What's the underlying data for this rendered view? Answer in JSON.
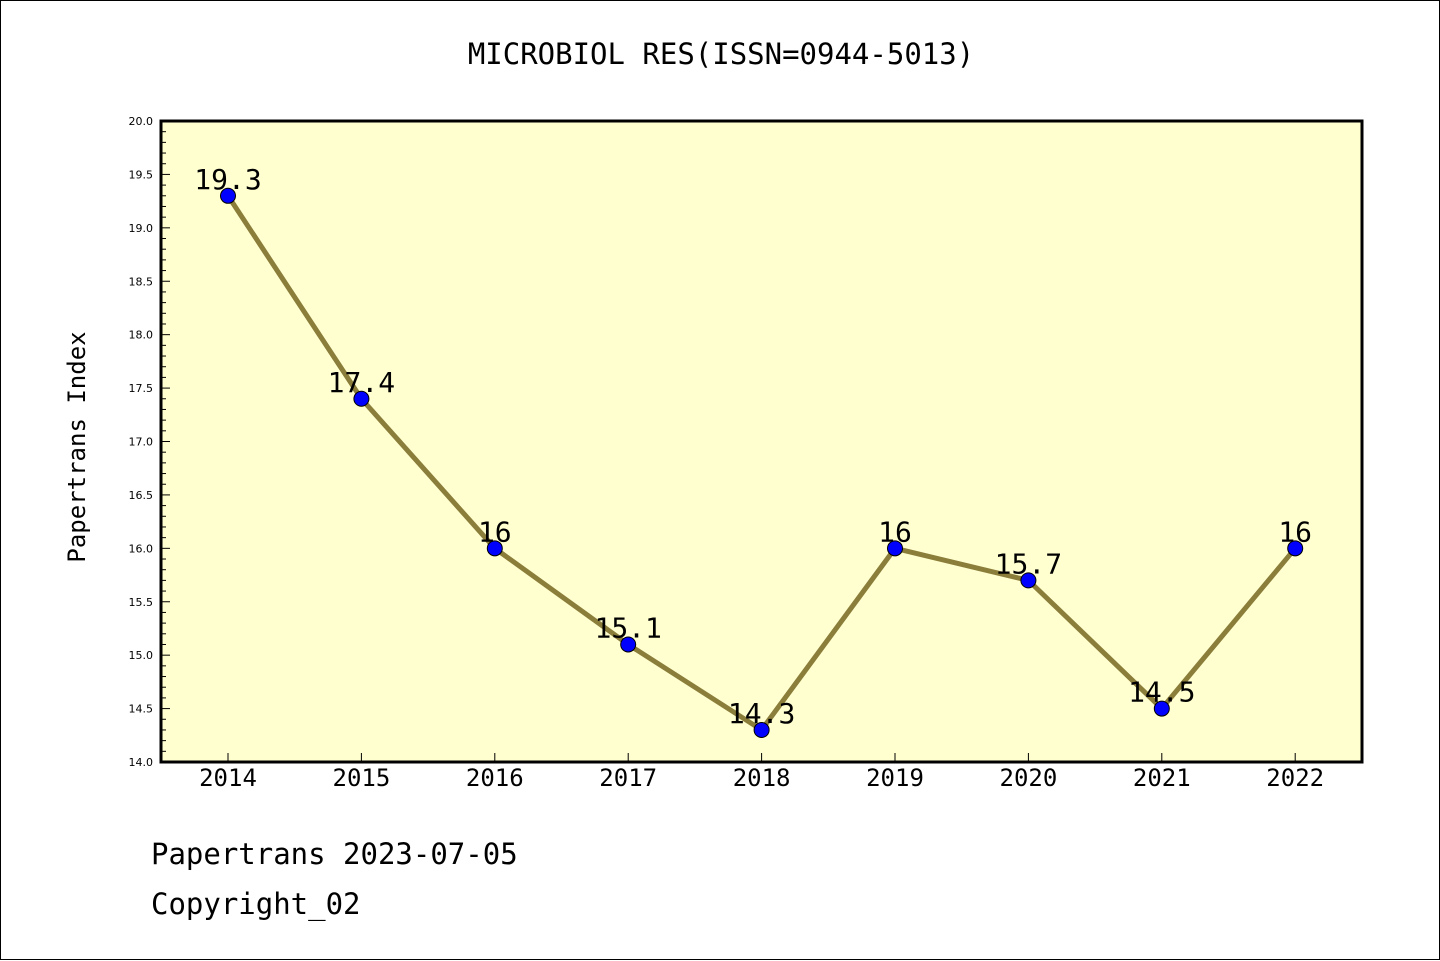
{
  "chart_data": {
    "type": "line",
    "title": "MICROBIOL RES(ISSN=0944-5013)",
    "xlabel": "",
    "ylabel": "Papertrans Index",
    "categories": [
      "2014",
      "2015",
      "2016",
      "2017",
      "2018",
      "2019",
      "2020",
      "2021",
      "2022"
    ],
    "series": [
      {
        "values": [
          19.3,
          17.4,
          16,
          15.1,
          14.3,
          16,
          15.7,
          14.5,
          16
        ],
        "data_labels": [
          "19.3",
          "17.4",
          "16",
          "15.1",
          "14.3",
          "16",
          "15.7",
          "14.5",
          "16"
        ]
      }
    ],
    "ylim": [
      14.0,
      20.0
    ],
    "y_ticks": [
      "14.0",
      "14.5",
      "15.0",
      "15.5",
      "16.0",
      "16.5",
      "17.0",
      "17.5",
      "18.0",
      "18.5",
      "19.0",
      "19.5",
      "20.0"
    ],
    "grid": false,
    "legend": "none",
    "colors": {
      "plot_background": "#ffffd0",
      "line": "#8b7d3a",
      "marker": "#0000ff"
    }
  },
  "footer": {
    "date_line": "Papertrans 2023-07-05",
    "copyright_line": "Copyright_02"
  }
}
